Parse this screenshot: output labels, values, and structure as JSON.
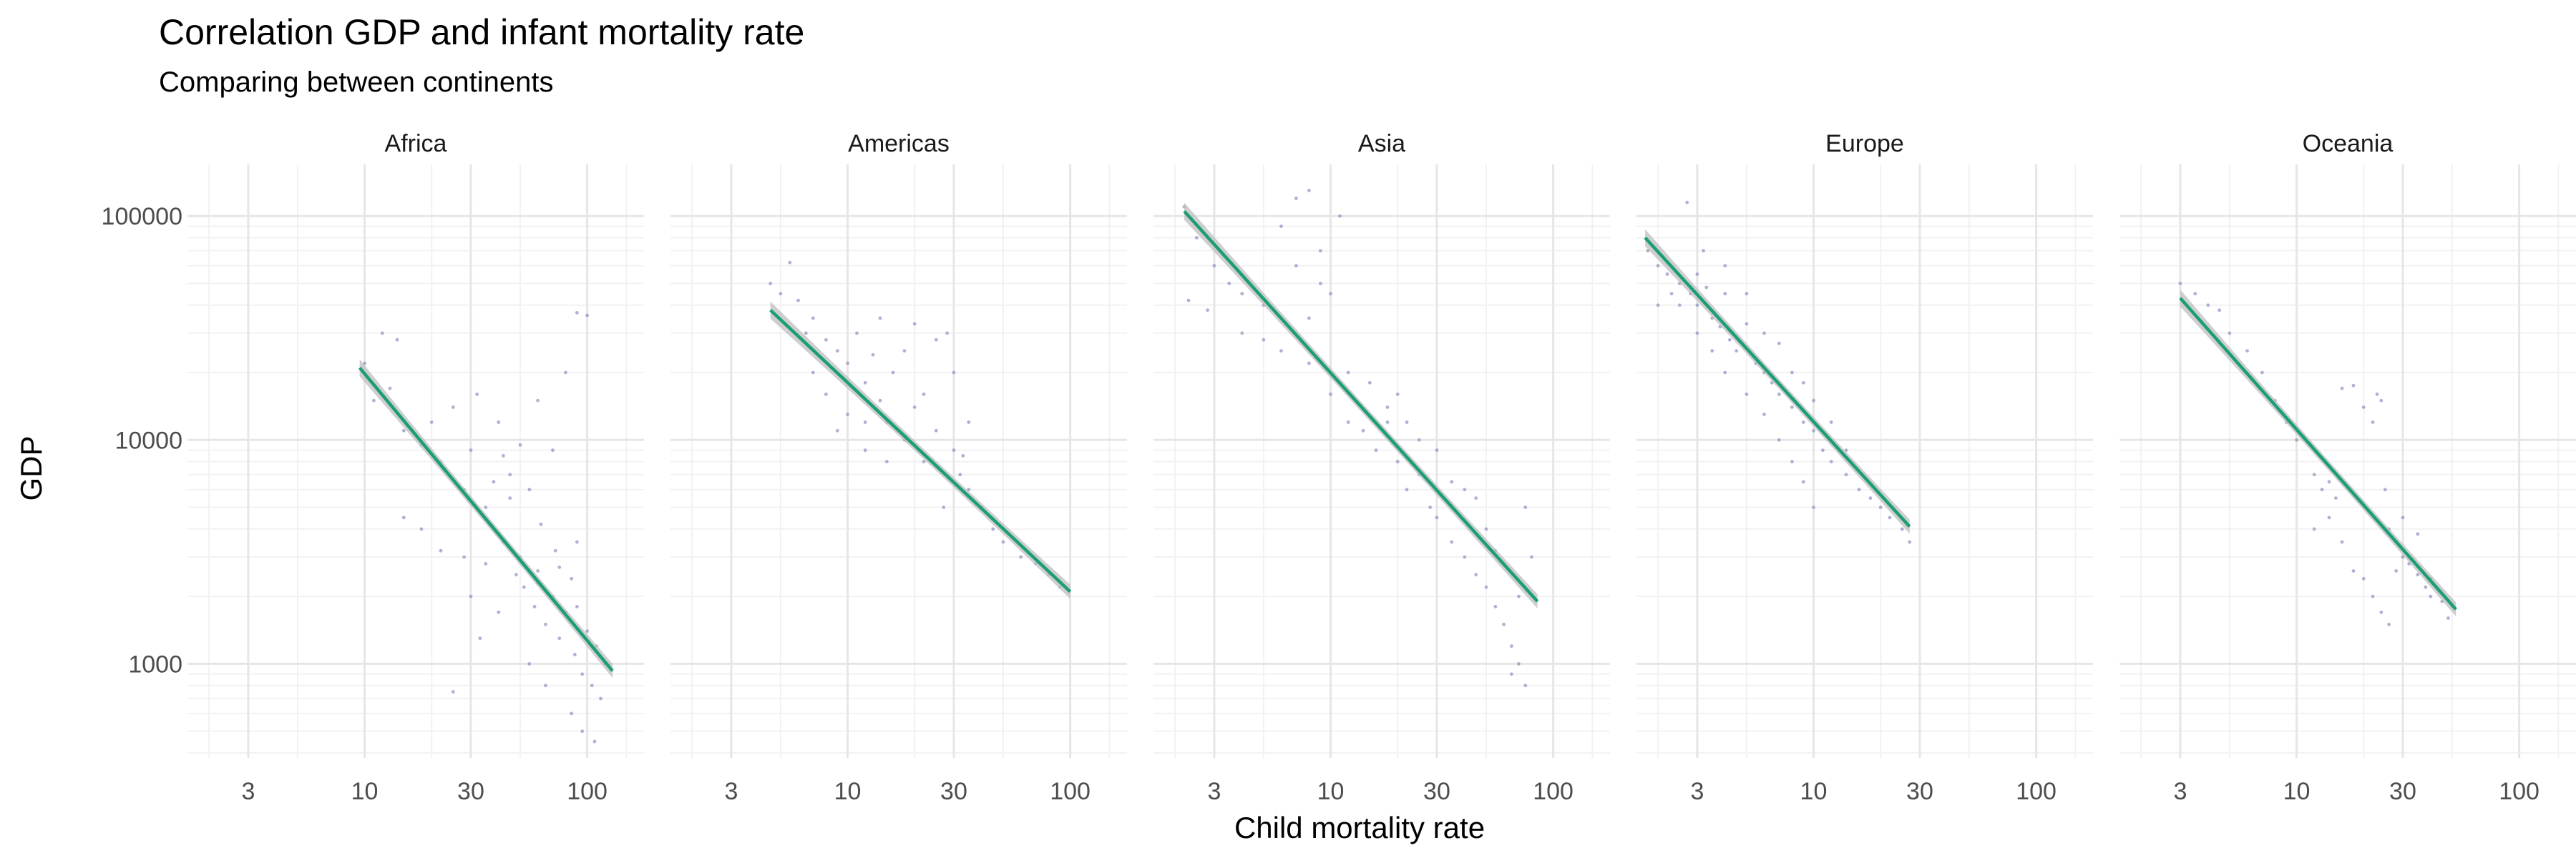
{
  "chart_data": {
    "type": "scatter",
    "title": "Correlation GDP and infant mortality rate",
    "subtitle": "Comparing between continents",
    "xlabel": "Child mortality rate",
    "ylabel": "GDP",
    "x_scale": "log10",
    "y_scale": "log10",
    "xlim": [
      1.6,
      180
    ],
    "ylim": [
      380,
      170000
    ],
    "x_ticks": [
      3,
      10,
      30,
      100
    ],
    "x_tick_labels": [
      "3",
      "10",
      "30",
      "100"
    ],
    "y_ticks": [
      1000,
      10000,
      100000
    ],
    "y_tick_labels": [
      "1000",
      "10000",
      "100000"
    ],
    "grid": true,
    "colors": {
      "points": "#8f8fbf",
      "fit_line": "#1b9e77",
      "ribbon": "#bdbdbd",
      "grid_major": "#e6e6e6",
      "grid_minor": "#f2f2f2"
    },
    "panels": [
      {
        "name": "Africa",
        "fit": {
          "x": [
            9.5,
            130
          ],
          "y": [
            21000,
            930
          ]
        },
        "points": [
          [
            10,
            22000
          ],
          [
            12,
            30000
          ],
          [
            14,
            28000
          ],
          [
            11,
            15000
          ],
          [
            13,
            17000
          ],
          [
            15,
            11000
          ],
          [
            18,
            9500
          ],
          [
            20,
            12000
          ],
          [
            22,
            8000
          ],
          [
            25,
            14000
          ],
          [
            28,
            6000
          ],
          [
            30,
            9000
          ],
          [
            32,
            16000
          ],
          [
            35,
            5000
          ],
          [
            38,
            4000
          ],
          [
            40,
            12000
          ],
          [
            42,
            3500
          ],
          [
            45,
            7000
          ],
          [
            48,
            2500
          ],
          [
            50,
            3000
          ],
          [
            52,
            2200
          ],
          [
            55,
            6000
          ],
          [
            58,
            1800
          ],
          [
            60,
            2600
          ],
          [
            62,
            4200
          ],
          [
            65,
            1500
          ],
          [
            70,
            2000
          ],
          [
            72,
            3200
          ],
          [
            75,
            1300
          ],
          [
            80,
            1700
          ],
          [
            85,
            2400
          ],
          [
            88,
            1100
          ],
          [
            90,
            3500
          ],
          [
            95,
            900
          ],
          [
            100,
            1400
          ],
          [
            105,
            800
          ],
          [
            110,
            1200
          ],
          [
            115,
            700
          ],
          [
            120,
            1000
          ],
          [
            100,
            36000
          ],
          [
            90,
            37000
          ],
          [
            80,
            20000
          ],
          [
            70,
            9000
          ],
          [
            60,
            15000
          ],
          [
            50,
            9500
          ],
          [
            45,
            5500
          ],
          [
            35,
            2800
          ],
          [
            30,
            2000
          ],
          [
            25,
            750
          ],
          [
            28,
            3000
          ],
          [
            33,
            1300
          ],
          [
            40,
            1700
          ],
          [
            55,
            1000
          ],
          [
            65,
            800
          ],
          [
            85,
            600
          ],
          [
            95,
            500
          ],
          [
            108,
            450
          ],
          [
            18,
            4000
          ],
          [
            15,
            4500
          ],
          [
            22,
            3200
          ],
          [
            38,
            6500
          ],
          [
            42,
            8500
          ],
          [
            60,
            2300
          ],
          [
            75,
            2700
          ],
          [
            90,
            1800
          ]
        ]
      },
      {
        "name": "Americas",
        "fit": {
          "x": [
            4.5,
            100
          ],
          "y": [
            38000,
            2100
          ]
        },
        "points": [
          [
            4.5,
            50000
          ],
          [
            5,
            45000
          ],
          [
            5.5,
            62000
          ],
          [
            6,
            42000
          ],
          [
            6.5,
            30000
          ],
          [
            7,
            35000
          ],
          [
            8,
            28000
          ],
          [
            9,
            25000
          ],
          [
            10,
            22000
          ],
          [
            11,
            30000
          ],
          [
            12,
            18000
          ],
          [
            13,
            24000
          ],
          [
            14,
            15000
          ],
          [
            15,
            12000
          ],
          [
            16,
            20000
          ],
          [
            18,
            10000
          ],
          [
            20,
            14000
          ],
          [
            22,
            8000
          ],
          [
            25,
            11000
          ],
          [
            28,
            30000
          ],
          [
            30,
            9000
          ],
          [
            32,
            7000
          ],
          [
            35,
            6000
          ],
          [
            40,
            5000
          ],
          [
            45,
            4000
          ],
          [
            50,
            3500
          ],
          [
            60,
            3000
          ],
          [
            70,
            2800
          ],
          [
            80,
            2500
          ],
          [
            90,
            2200
          ],
          [
            10,
            13000
          ],
          [
            12,
            9000
          ],
          [
            15,
            8000
          ],
          [
            8,
            16000
          ],
          [
            7,
            20000
          ],
          [
            18,
            25000
          ],
          [
            20,
            33000
          ],
          [
            25,
            28000
          ],
          [
            30,
            20000
          ],
          [
            35,
            12000
          ],
          [
            22,
            16000
          ],
          [
            14,
            35000
          ],
          [
            12,
            12000
          ],
          [
            9,
            11000
          ],
          [
            27,
            5000
          ],
          [
            33,
            8500
          ]
        ]
      },
      {
        "name": "Asia",
        "fit": {
          "x": [
            2.2,
            85
          ],
          "y": [
            105000,
            1900
          ]
        },
        "points": [
          [
            2.2,
            110000
          ],
          [
            2.5,
            80000
          ],
          [
            3,
            60000
          ],
          [
            3.5,
            50000
          ],
          [
            2.3,
            42000
          ],
          [
            2.8,
            38000
          ],
          [
            4,
            30000
          ],
          [
            5,
            28000
          ],
          [
            6,
            90000
          ],
          [
            7,
            120000
          ],
          [
            8,
            130000
          ],
          [
            9,
            70000
          ],
          [
            10,
            45000
          ],
          [
            11,
            100000
          ],
          [
            9,
            50000
          ],
          [
            7,
            60000
          ],
          [
            6,
            25000
          ],
          [
            8,
            22000
          ],
          [
            10,
            16000
          ],
          [
            12,
            12000
          ],
          [
            14,
            11000
          ],
          [
            16,
            9000
          ],
          [
            18,
            14000
          ],
          [
            20,
            8000
          ],
          [
            22,
            6000
          ],
          [
            25,
            7000
          ],
          [
            28,
            5000
          ],
          [
            30,
            4500
          ],
          [
            35,
            3500
          ],
          [
            40,
            3000
          ],
          [
            45,
            2500
          ],
          [
            50,
            2200
          ],
          [
            55,
            1800
          ],
          [
            60,
            1500
          ],
          [
            65,
            1200
          ],
          [
            70,
            1000
          ],
          [
            75,
            5000
          ],
          [
            80,
            3000
          ],
          [
            15,
            18000
          ],
          [
            20,
            16000
          ],
          [
            25,
            10000
          ],
          [
            30,
            9000
          ],
          [
            40,
            6000
          ],
          [
            50,
            4000
          ],
          [
            60,
            2800
          ],
          [
            70,
            2000
          ],
          [
            12,
            20000
          ],
          [
            8,
            35000
          ],
          [
            5,
            40000
          ],
          [
            4,
            45000
          ],
          [
            18,
            12000
          ],
          [
            22,
            12000
          ],
          [
            35,
            6500
          ],
          [
            45,
            5500
          ],
          [
            55,
            3200
          ],
          [
            65,
            900
          ],
          [
            75,
            800
          ]
        ]
      },
      {
        "name": "Europe",
        "fit": {
          "x": [
            1.75,
            27
          ],
          "y": [
            80000,
            4100
          ]
        },
        "points": [
          [
            1.8,
            70000
          ],
          [
            2,
            60000
          ],
          [
            2.2,
            55000
          ],
          [
            2.5,
            50000
          ],
          [
            2.7,
            115000
          ],
          [
            2.8,
            45000
          ],
          [
            3,
            40000
          ],
          [
            3.2,
            70000
          ],
          [
            3.5,
            35000
          ],
          [
            3.8,
            32000
          ],
          [
            4,
            60000
          ],
          [
            4.2,
            28000
          ],
          [
            4.5,
            25000
          ],
          [
            5,
            45000
          ],
          [
            5.5,
            22000
          ],
          [
            6,
            20000
          ],
          [
            6.5,
            18000
          ],
          [
            7,
            16000
          ],
          [
            8,
            14000
          ],
          [
            9,
            12000
          ],
          [
            10,
            11000
          ],
          [
            11,
            9000
          ],
          [
            12,
            8000
          ],
          [
            14,
            7000
          ],
          [
            16,
            6000
          ],
          [
            18,
            5500
          ],
          [
            20,
            5000
          ],
          [
            22,
            4500
          ],
          [
            25,
            4000
          ],
          [
            27,
            3500
          ],
          [
            2.5,
            40000
          ],
          [
            3,
            30000
          ],
          [
            3.5,
            25000
          ],
          [
            4,
            20000
          ],
          [
            5,
            16000
          ],
          [
            6,
            13000
          ],
          [
            7,
            10000
          ],
          [
            8,
            8000
          ],
          [
            9,
            6500
          ],
          [
            10,
            5000
          ],
          [
            3,
            55000
          ],
          [
            4,
            45000
          ],
          [
            5,
            33000
          ],
          [
            6,
            30000
          ],
          [
            7,
            27000
          ],
          [
            8,
            20000
          ],
          [
            9,
            18000
          ],
          [
            10,
            15000
          ],
          [
            12,
            12000
          ],
          [
            14,
            9000
          ],
          [
            2,
            40000
          ],
          [
            2.3,
            45000
          ],
          [
            3.3,
            48000
          ]
        ]
      },
      {
        "name": "Oceania",
        "fit": {
          "x": [
            3,
            52
          ],
          "y": [
            43000,
            1750
          ]
        },
        "points": [
          [
            3,
            50000
          ],
          [
            3.5,
            45000
          ],
          [
            4,
            40000
          ],
          [
            4.5,
            38000
          ],
          [
            5,
            30000
          ],
          [
            6,
            25000
          ],
          [
            7,
            20000
          ],
          [
            8,
            15000
          ],
          [
            9,
            12000
          ],
          [
            10,
            10000
          ],
          [
            12,
            7000
          ],
          [
            13,
            6000
          ],
          [
            14,
            6500
          ],
          [
            15,
            5500
          ],
          [
            16,
            17000
          ],
          [
            18,
            17500
          ],
          [
            20,
            14000
          ],
          [
            22,
            12000
          ],
          [
            23,
            16000
          ],
          [
            24,
            15000
          ],
          [
            25,
            6000
          ],
          [
            26,
            4000
          ],
          [
            28,
            3500
          ],
          [
            30,
            3000
          ],
          [
            32,
            2800
          ],
          [
            35,
            2500
          ],
          [
            38,
            2200
          ],
          [
            40,
            2000
          ],
          [
            45,
            1900
          ],
          [
            50,
            1800
          ],
          [
            12,
            4000
          ],
          [
            14,
            4500
          ],
          [
            16,
            3500
          ],
          [
            18,
            2600
          ],
          [
            20,
            2400
          ],
          [
            22,
            2000
          ],
          [
            24,
            1700
          ],
          [
            26,
            1500
          ],
          [
            28,
            2600
          ],
          [
            30,
            4500
          ],
          [
            35,
            3800
          ],
          [
            40,
            2400
          ],
          [
            48,
            1600
          ]
        ]
      }
    ]
  }
}
